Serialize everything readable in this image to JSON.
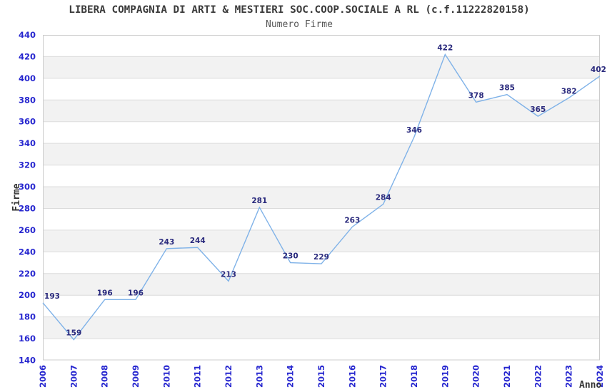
{
  "chart_data": {
    "type": "line",
    "title": "LIBERA COMPAGNIA DI ARTI & MESTIERI SOC.COOP.SOCIALE A RL (c.f.11222820158)",
    "subtitle": "Numero Firme",
    "xlabel": "Anno",
    "ylabel": "Firme",
    "categories": [
      "2006",
      "2007",
      "2008",
      "2009",
      "2010",
      "2011",
      "2012",
      "2013",
      "2014",
      "2015",
      "2016",
      "2017",
      "2018",
      "2019",
      "2020",
      "2021",
      "2022",
      "2023",
      "2024"
    ],
    "values": [
      193,
      159,
      196,
      196,
      243,
      244,
      213,
      281,
      230,
      229,
      263,
      284,
      346,
      422,
      378,
      385,
      365,
      382,
      402
    ],
    "series": [
      {
        "name": "Numero Firme",
        "values": [
          193,
          159,
          196,
          196,
          243,
          244,
          213,
          281,
          230,
          229,
          263,
          284,
          346,
          422,
          378,
          385,
          365,
          382,
          402
        ]
      }
    ],
    "ylim": [
      140,
      440
    ],
    "ytick_step": 20,
    "yticks": [
      140,
      160,
      180,
      200,
      220,
      240,
      260,
      280,
      300,
      320,
      340,
      360,
      380,
      400,
      420,
      440
    ],
    "grid": "horizontal-only",
    "bands": "alternating-horizontal",
    "legend": "none",
    "markers": "none",
    "x_tick_rotation": -90
  },
  "colors": {
    "background": "#ffffff",
    "title": "#3a3a3a",
    "subtitle": "#555555",
    "axis_title": "#333333",
    "tick_label": "#2626cf",
    "data_label": "#2a2a7d",
    "line": "#7fb2e8",
    "band": "#f2f2f2",
    "gridline": "#dcdcdc",
    "plot_border": "#cccccc"
  }
}
